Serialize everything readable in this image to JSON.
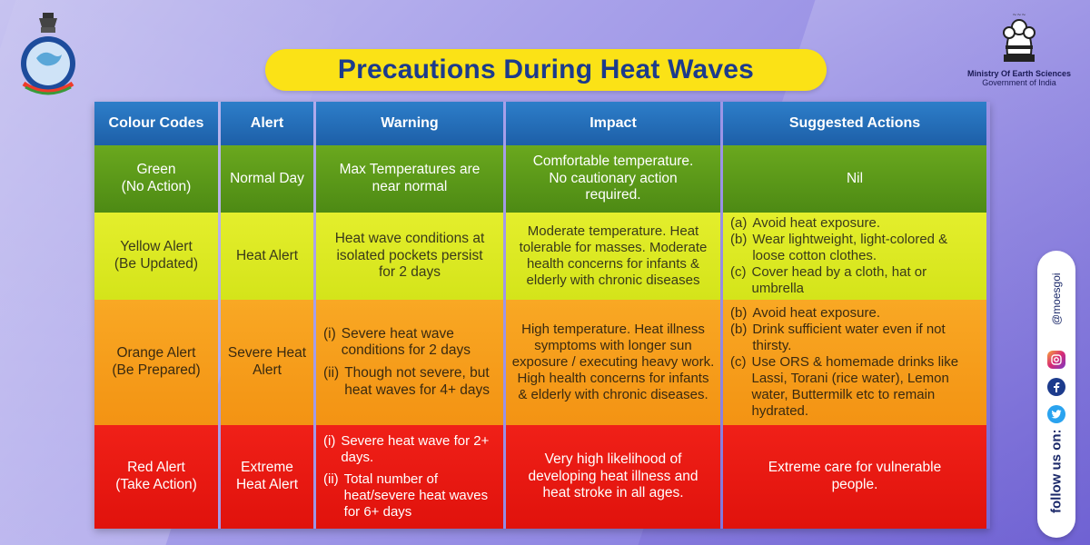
{
  "title": "Precautions During Heat Waves",
  "org": {
    "line1": "Ministry Of Earth Sciences",
    "line2": "Government of India"
  },
  "headers": [
    "Colour Codes",
    "Alert",
    "Warning",
    "Impact",
    "Suggested Actions"
  ],
  "rows": [
    {
      "colour_code": "Green\n(No Action)",
      "alert": "Normal Day",
      "warning": "Max Temperatures are near normal",
      "impact": "Comfortable temperature. No cautionary action required.",
      "actions": "Nil"
    },
    {
      "colour_code": "Yellow Alert\n(Be Updated)",
      "alert": "Heat Alert",
      "warning": "Heat wave conditions at isolated pockets persist for 2 days",
      "impact": "Moderate temperature. Heat tolerable for masses. Moderate health concerns for infants & elderly with chronic diseases",
      "actions": [
        {
          "key": "(a)",
          "text": "Avoid heat exposure."
        },
        {
          "key": "(b)",
          "text": "Wear lightweight, light-colored & loose cotton clothes."
        },
        {
          "key": "(c)",
          "text": "Cover head by a cloth, hat or umbrella"
        }
      ]
    },
    {
      "colour_code": "Orange Alert\n(Be Prepared)",
      "alert": "Severe Heat Alert",
      "warning": [
        {
          "key": "(i)",
          "text": "Severe heat wave conditions for 2 days"
        },
        {
          "key": "(ii)",
          "text": "Though not severe, but heat waves for 4+ days"
        }
      ],
      "impact": "High temperature. Heat illness symptoms with longer sun exposure / executing heavy work. High health concerns for infants & elderly with chronic diseases.",
      "actions": [
        {
          "key": "(b)",
          "text": "Avoid heat exposure."
        },
        {
          "key": "(b)",
          "text": "Drink sufficient water even if not thirsty."
        },
        {
          "key": "(c)",
          "text": "Use ORS & homemade drinks like Lassi, Torani (rice water), Lemon water, Buttermilk etc to remain hydrated."
        }
      ]
    },
    {
      "colour_code": "Red Alert\n(Take Action)",
      "alert": "Extreme Heat Alert",
      "warning": [
        {
          "key": "(i)",
          "text": "Severe heat wave for 2+ days."
        },
        {
          "key": "(ii)",
          "text": "Total number of heat/severe heat waves for 6+ days"
        }
      ],
      "impact": "Very high likelihood of developing heat illness and heat stroke in all ages.",
      "actions": "Extreme care for vulnerable people."
    }
  ],
  "social": {
    "follow_label": "follow us on:",
    "handle": "@moesgoi",
    "icons": [
      "instagram-icon",
      "facebook-icon",
      "twitter-icon"
    ]
  },
  "colors": {
    "header": "#1d5fa8",
    "green": "#4d8a14",
    "yellow": "#d4e41a",
    "orange": "#f39313",
    "red": "#e0120c",
    "title_bg": "#fbe216",
    "title_text": "#1c3b8c"
  }
}
